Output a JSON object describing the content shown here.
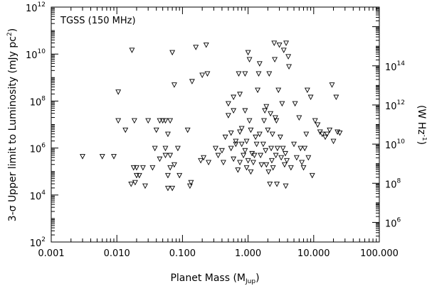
{
  "chart_data": {
    "type": "scatter",
    "annotation": "TGSS (150 MHz)",
    "xlabel": "Planet Mass (M",
    "xlabel_sub": "Jup",
    "xlabel_close": ")",
    "ylabel": "3-σ Upper limit to Luminosity (mJy pc",
    "ylabel_sup": "2",
    "ylabel_close": ")",
    "y2label": "(W Hz",
    "y2label_sup": "-1",
    "y2label_close": ")",
    "xscale": "log",
    "yscale": "log",
    "xlim": [
      0.001,
      100
    ],
    "ylim": [
      100,
      1000000000000.0
    ],
    "y2lim": [
      100000.0,
      1e+17
    ],
    "x_tick_values": [
      0.001,
      0.01,
      0.1,
      1,
      10,
      100
    ],
    "x_tick_labels": [
      "0.001",
      "0.010",
      "0.100",
      "1.000",
      "10.000",
      "100.000"
    ],
    "y_tick_base": "10",
    "y_tick_exponents": [
      "2",
      "4",
      "6",
      "8",
      "10",
      "12"
    ],
    "y2_tick_base": "10",
    "y2_tick_exponents": [
      "6",
      "8",
      "10",
      "12",
      "14"
    ],
    "marker": "open-downward-triangle",
    "points": [
      [
        0.003,
        450000.0
      ],
      [
        0.006,
        450000.0
      ],
      [
        0.009,
        450000.0
      ],
      [
        0.0105,
        250000000.0
      ],
      [
        0.0105,
        15000000.0
      ],
      [
        0.0135,
        6000000.0
      ],
      [
        0.017,
        15000000000.0
      ],
      [
        0.0165,
        30000.0
      ],
      [
        0.018,
        150000.0
      ],
      [
        0.019,
        35000.0
      ],
      [
        0.02,
        70000.0
      ],
      [
        0.0185,
        15000000.0
      ],
      [
        0.02,
        150000.0
      ],
      [
        0.022,
        70000.0
      ],
      [
        0.025,
        150000.0
      ],
      [
        0.027,
        25000.0
      ],
      [
        0.03,
        15000000.0
      ],
      [
        0.035,
        150000.0
      ],
      [
        0.038,
        1000000.0
      ],
      [
        0.04,
        6000000.0
      ],
      [
        0.045,
        350000.0
      ],
      [
        0.045,
        15000000.0
      ],
      [
        0.05,
        15000000.0
      ],
      [
        0.055,
        15000000.0
      ],
      [
        0.055,
        500000.0
      ],
      [
        0.06,
        20000.0
      ],
      [
        0.06,
        70000.0
      ],
      [
        0.065,
        150000.0
      ],
      [
        0.055,
        1000000.0
      ],
      [
        0.06,
        4000000.0
      ],
      [
        0.065,
        15000000.0
      ],
      [
        0.07,
        12000000000.0
      ],
      [
        0.075,
        500000000.0
      ],
      [
        0.065,
        500000.0
      ],
      [
        0.07,
        20000.0
      ],
      [
        0.075,
        200000.0
      ],
      [
        0.085,
        1000000.0
      ],
      [
        0.09,
        70000.0
      ],
      [
        0.12,
        6000000.0
      ],
      [
        0.13,
        25000.0
      ],
      [
        0.135,
        35000.0
      ],
      [
        0.16,
        20000000000.0
      ],
      [
        0.19,
        300000.0
      ],
      [
        0.2,
        1300000000.0
      ],
      [
        0.21,
        400000.0
      ],
      [
        0.23,
        25000000000.0
      ],
      [
        0.24,
        1500000000.0
      ],
      [
        0.25,
        250000.0
      ],
      [
        0.14,
        700000000.0
      ],
      [
        0.32,
        1000000.0
      ],
      [
        0.35,
        500000.0
      ],
      [
        0.4,
        800000.0
      ],
      [
        0.42,
        250000.0
      ],
      [
        0.45,
        3000000.0
      ],
      [
        0.5,
        80000000.0
      ],
      [
        0.5,
        25000000.0
      ],
      [
        0.55,
        1000000.0
      ],
      [
        0.55,
        4500000.0
      ],
      [
        0.6,
        150000000.0
      ],
      [
        0.6,
        40000000.0
      ],
      [
        0.6,
        350000.0
      ],
      [
        0.65,
        2000000.0
      ],
      [
        0.65,
        1500000.0
      ],
      [
        0.7,
        120000.0
      ],
      [
        0.72,
        1500000000.0
      ],
      [
        0.75,
        200000000.0
      ],
      [
        0.75,
        5000000.0
      ],
      [
        0.75,
        250000.0
      ],
      [
        0.8,
        7000000.0
      ],
      [
        0.8,
        1500000.0
      ],
      [
        0.85,
        500000.0
      ],
      [
        0.9,
        1500000000.0
      ],
      [
        0.9,
        40000000.0
      ],
      [
        0.9,
        800000.0
      ],
      [
        0.95,
        2000000.0
      ],
      [
        0.95,
        150000.0
      ],
      [
        1.0,
        12000000000.0
      ],
      [
        1.05,
        6000000000.0
      ],
      [
        1.0,
        300000.0
      ],
      [
        1.05,
        15000000.0
      ],
      [
        1.1,
        100000.0
      ],
      [
        1.1,
        6000000.0
      ],
      [
        1.15,
        600000.0
      ],
      [
        1.2,
        250000.0
      ],
      [
        1.25,
        500000.0
      ],
      [
        1.3,
        3000000.0
      ],
      [
        1.35,
        1500000.0
      ],
      [
        1.4,
        300000000.0
      ],
      [
        1.45,
        1500000000.0
      ],
      [
        1.5,
        4000000000.0
      ],
      [
        1.5,
        4000000.0
      ],
      [
        1.55,
        500000.0
      ],
      [
        1.6,
        200000.0
      ],
      [
        1.7,
        1500000.0
      ],
      [
        1.75,
        15000000.0
      ],
      [
        1.8,
        40000000.0
      ],
      [
        1.85,
        800000.0
      ],
      [
        1.9,
        200000.0
      ],
      [
        1.9,
        60000000.0
      ],
      [
        2.0,
        6000000.0
      ],
      [
        2.05,
        100000.0
      ],
      [
        2.1,
        1500000000.0
      ],
      [
        2.15,
        30000.0
      ],
      [
        2.2,
        30000000.0
      ],
      [
        2.25,
        1000000.0
      ],
      [
        2.3,
        300000.0
      ],
      [
        2.35,
        4000000.0
      ],
      [
        2.4,
        150000.0
      ],
      [
        2.5,
        30000000000.0
      ],
      [
        2.55,
        6000000000.0
      ],
      [
        2.6,
        20000000.0
      ],
      [
        2.65,
        500000.0
      ],
      [
        2.7,
        15000000.0
      ],
      [
        2.75,
        30000.0
      ],
      [
        2.8,
        1000000.0
      ],
      [
        2.9,
        300000000.0
      ],
      [
        3.0,
        25000000000.0
      ],
      [
        3.1,
        3000000.0
      ],
      [
        3.2,
        400000.0
      ],
      [
        3.3,
        80000000.0
      ],
      [
        3.4,
        1000000.0
      ],
      [
        3.5,
        15000000000.0
      ],
      [
        3.6,
        200000.0
      ],
      [
        3.7,
        600000.0
      ],
      [
        3.75,
        25000.0
      ],
      [
        3.8,
        30000000000.0
      ],
      [
        3.9,
        300000.0
      ],
      [
        4.1,
        8000000000.0
      ],
      [
        4.2,
        3000000000.0
      ],
      [
        4.5,
        150000.0
      ],
      [
        5.0,
        1500000.0
      ],
      [
        5.2,
        80000000.0
      ],
      [
        5.5,
        400000.0
      ],
      [
        6.0,
        20000000.0
      ],
      [
        6.3,
        1000000.0
      ],
      [
        6.6,
        250000.0
      ],
      [
        7.0,
        150000.0
      ],
      [
        7.3,
        1000000.0
      ],
      [
        7.7,
        4000000.0
      ],
      [
        8.0,
        300000000.0
      ],
      [
        8.3,
        400000.0
      ],
      [
        9.0,
        150000000.0
      ],
      [
        9.5,
        70000.0
      ],
      [
        10.5,
        15000000.0
      ],
      [
        11.5,
        10000000.0
      ],
      [
        12.5,
        5000000.0
      ],
      [
        13.5,
        4000000.0
      ],
      [
        15.0,
        3000000.0
      ],
      [
        16.0,
        4000000.0
      ],
      [
        17.5,
        6000000.0
      ],
      [
        19.0,
        500000000.0
      ],
      [
        20.0,
        2000000.0
      ],
      [
        22.0,
        150000000.0
      ],
      [
        23.0,
        5000000.0
      ],
      [
        25.0,
        4500000.0
      ]
    ]
  }
}
